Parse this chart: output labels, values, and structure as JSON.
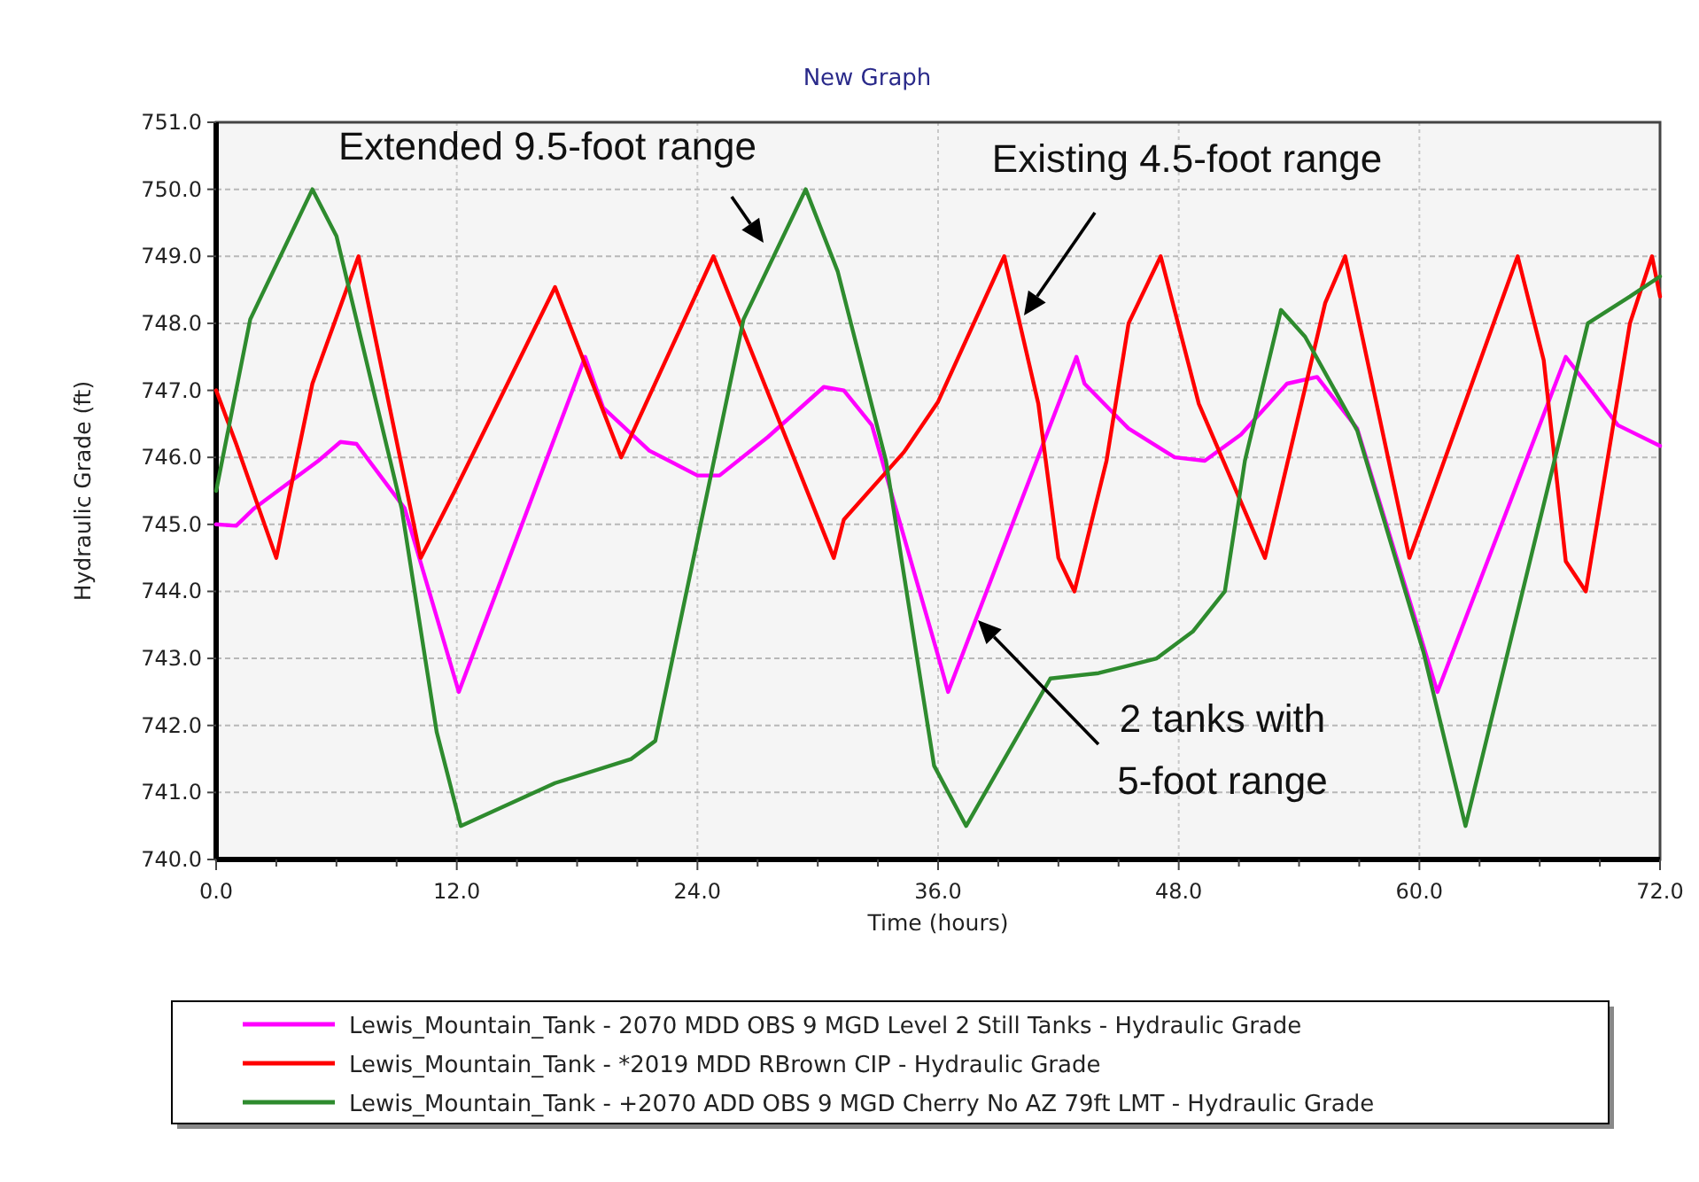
{
  "chart_data": {
    "type": "line",
    "title": "New Graph",
    "xlabel": "Time (hours)",
    "ylabel": "Hydraulic Grade (ft)",
    "xlim": [
      0,
      72
    ],
    "ylim": [
      740,
      751
    ],
    "xticks": [
      {
        "value": 0,
        "label": "0.0"
      },
      {
        "value": 3,
        "label": null
      },
      {
        "value": 6,
        "label": null
      },
      {
        "value": 9,
        "label": null
      },
      {
        "value": 12,
        "label": "12.0"
      },
      {
        "value": 15,
        "label": null
      },
      {
        "value": 18,
        "label": null
      },
      {
        "value": 21,
        "label": null
      },
      {
        "value": 24,
        "label": "24.0"
      },
      {
        "value": 27,
        "label": null
      },
      {
        "value": 30,
        "label": null
      },
      {
        "value": 33,
        "label": null
      },
      {
        "value": 36,
        "label": "36.0"
      },
      {
        "value": 39,
        "label": null
      },
      {
        "value": 42,
        "label": null
      },
      {
        "value": 45,
        "label": null
      },
      {
        "value": 48,
        "label": "48.0"
      },
      {
        "value": 51,
        "label": null
      },
      {
        "value": 54,
        "label": null
      },
      {
        "value": 57,
        "label": null
      },
      {
        "value": 60,
        "label": "60.0"
      },
      {
        "value": 63,
        "label": null
      },
      {
        "value": 66,
        "label": null
      },
      {
        "value": 69,
        "label": null
      },
      {
        "value": 72,
        "label": "72.0"
      }
    ],
    "yticks": [
      {
        "value": 740,
        "label": "740.0"
      },
      {
        "value": 741,
        "label": "741.0"
      },
      {
        "value": 742,
        "label": "742.0"
      },
      {
        "value": 743,
        "label": "743.0"
      },
      {
        "value": 744,
        "label": "744.0"
      },
      {
        "value": 745,
        "label": "745.0"
      },
      {
        "value": 746,
        "label": "746.0"
      },
      {
        "value": 747,
        "label": "747.0"
      },
      {
        "value": 748,
        "label": "748.0"
      },
      {
        "value": 749,
        "label": "749.0"
      },
      {
        "value": 750,
        "label": "750.0"
      },
      {
        "value": 751,
        "label": "751.0"
      }
    ],
    "grid": true,
    "legend": "bottom",
    "line_style": "solid",
    "series": [
      {
        "name": "Lewis_Mountain_Tank - 2070 MDD OBS 9 MGD Level 2 Still Tanks - Hydraulic Grade",
        "color": "#ff00ff",
        "x": [
          0,
          1,
          1.9,
          5.1,
          6.2,
          7,
          9.4,
          12.1,
          18.4,
          19.3,
          21.6,
          24,
          25.1,
          27.5,
          30.3,
          31.3,
          32.7,
          36,
          36.5,
          42.9,
          43.3,
          45.5,
          47.8,
          49.3,
          51.1,
          53.4,
          54.9,
          56.9,
          60.9,
          67.3,
          69.9,
          72
        ],
        "values": [
          745,
          744.98,
          745.24,
          745.95,
          746.23,
          746.2,
          745.24,
          742.5,
          747.5,
          746.74,
          746.1,
          745.73,
          745.73,
          746.3,
          747.05,
          747,
          746.48,
          743.04,
          742.5,
          747.5,
          747.1,
          746.43,
          746,
          745.95,
          746.34,
          747.1,
          747.2,
          746.43,
          742.5,
          747.5,
          746.48,
          746.17
        ]
      },
      {
        "name": "Lewis_Mountain_Tank - *2019 MDD RBrown CIP - Hydraulic Grade",
        "color": "#ff0000",
        "x": [
          0,
          1,
          3,
          4.8,
          7.1,
          10.2,
          11.9,
          16.9,
          20.2,
          24.8,
          30.8,
          31.3,
          34.3,
          36,
          39.3,
          41,
          42,
          42.8,
          44.4,
          45.5,
          47.1,
          49,
          52.3,
          55.3,
          56.3,
          59.5,
          64.9,
          66.2,
          67.3,
          68.3,
          70.5,
          71.6,
          72
        ],
        "values": [
          747,
          746.2,
          744.5,
          747.1,
          749,
          744.5,
          745.5,
          748.54,
          746,
          749,
          744.5,
          745.07,
          746.08,
          746.83,
          749,
          746.8,
          744.5,
          744,
          745.95,
          748,
          749,
          746.8,
          744.5,
          748.3,
          749,
          744.5,
          749,
          747.45,
          744.45,
          744,
          748,
          749,
          748.4
        ]
      },
      {
        "name": "Lewis_Mountain_Tank - +2070 ADD OBS 9 MGD Cherry No AZ 79ft LMT - Hydraulic Grade",
        "color": "#2e8b2e",
        "x": [
          0,
          1.7,
          4.8,
          6,
          9.25,
          11,
          12.2,
          16.9,
          20.7,
          21.9,
          26.3,
          29.4,
          31,
          33.4,
          35.8,
          37.4,
          41.6,
          44,
          46.9,
          48.7,
          50.3,
          51.3,
          53.1,
          54.3,
          56.9,
          60.2,
          62.3,
          68.4,
          70.5,
          72
        ],
        "values": [
          745.5,
          748.06,
          750,
          749.3,
          745.24,
          741.9,
          740.5,
          741.14,
          741.5,
          741.77,
          748.06,
          750,
          748.77,
          745.95,
          741.4,
          740.5,
          742.7,
          742.78,
          743,
          743.4,
          744,
          745.95,
          748.2,
          747.8,
          746.4,
          743.1,
          740.5,
          748,
          748.4,
          748.7
        ]
      }
    ],
    "annotations": [
      "Extended 9.5-foot range",
      "Existing 4.5-foot range",
      "2 tanks with\n5-foot range"
    ]
  }
}
